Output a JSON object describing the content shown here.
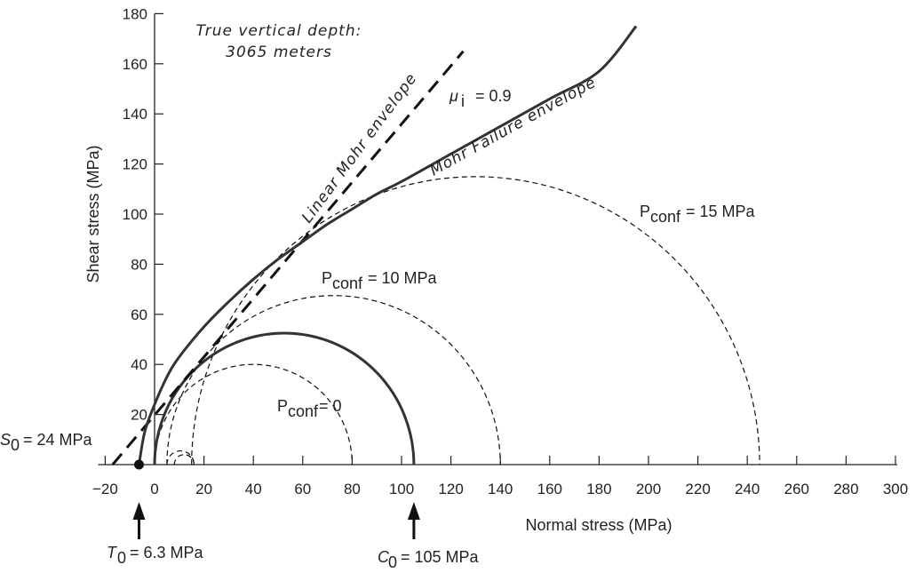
{
  "chart_data": {
    "type": "line",
    "xlabel": "Normal stress (MPa)",
    "ylabel": "Shear stress (MPa)",
    "xlim": [
      -20,
      300
    ],
    "ylim": [
      0,
      180
    ],
    "x_ticks": [
      -20,
      0,
      20,
      40,
      60,
      80,
      100,
      120,
      140,
      160,
      180,
      200,
      220,
      240,
      260,
      280,
      300
    ],
    "x_tick_labels": [
      "−20",
      "0",
      "20",
      "40",
      "60",
      "80",
      "100",
      "120",
      "140",
      "160",
      "180",
      "200",
      "220",
      "240",
      "260",
      "280",
      "300"
    ],
    "y_ticks": [
      20,
      40,
      60,
      80,
      100,
      120,
      140,
      160,
      180
    ],
    "annotation_depth": [
      "True vertical depth:",
      "3065 meters"
    ],
    "mohr_failure_envelope": {
      "label": "Mohr Failure envelope",
      "x": [
        -6.3,
        -4,
        0,
        5,
        10,
        20,
        30,
        40,
        50,
        60,
        70,
        80,
        90,
        100,
        120,
        140,
        160,
        180,
        195
      ],
      "y": [
        0,
        13,
        24,
        35,
        43,
        55,
        65,
        74,
        82,
        89,
        96,
        102,
        108,
        113,
        124,
        135,
        146,
        157,
        175
      ]
    },
    "linear_mohr_envelope": {
      "label": "Linear Mohr envelope",
      "mu_label": "μ",
      "mu_subscript": "i",
      "mu_value": "= 0.9",
      "x": [
        -17,
        125
      ],
      "y": [
        0,
        165
      ]
    },
    "circles": [
      {
        "label_main": "P",
        "label_sub": "conf",
        "label_value": "= 0",
        "center": 40,
        "radius": 40,
        "style": "dashed"
      },
      {
        "label_main": "P",
        "label_sub": "conf",
        "label_value": "= 10 MPa",
        "center": 72.5,
        "radius": 67.5,
        "style": "dashed"
      },
      {
        "label_main": "P",
        "label_sub": "conf",
        "label_value": "= 15 MPa",
        "center": 130,
        "radius": 115,
        "style": "dashed"
      },
      {
        "center": 52.5,
        "radius": 52.5,
        "style": "solid"
      },
      {
        "center": 10.5,
        "radius": 5.5,
        "style": "dashed"
      },
      {
        "center": 12,
        "radius": 4,
        "style": "dashed"
      }
    ],
    "annotations": {
      "S0": {
        "sym": "S",
        "sub": "0",
        "text": "= 24 MPa"
      },
      "T0": {
        "sym": "T",
        "sub": "0",
        "text": "= 6.3 MPa",
        "x": -6.3
      },
      "C0": {
        "sym": "C",
        "sub": "0",
        "text": "= 105 MPa",
        "x": 105
      }
    },
    "colors": {
      "solid": "#333333",
      "dashed": "#111111"
    }
  }
}
